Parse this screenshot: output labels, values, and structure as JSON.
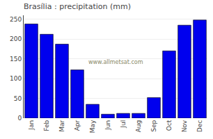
{
  "chart_data": {
    "type": "bar",
    "title": "Brasília : precipitation (mm)",
    "categories": [
      "Jan",
      "Feb",
      "Mar",
      "Apr",
      "May",
      "Jun",
      "Jul",
      "Aug",
      "Sep",
      "Oct",
      "Nov",
      "Dec"
    ],
    "values": [
      238,
      212,
      187,
      122,
      35,
      10,
      12,
      12,
      52,
      170,
      235,
      248
    ],
    "color": "#0000EE",
    "ylim": [
      0,
      260
    ],
    "yticks": [
      0,
      50,
      100,
      150,
      200,
      250
    ],
    "grid": true,
    "annotations": [
      "www.allmetsat.com"
    ]
  }
}
